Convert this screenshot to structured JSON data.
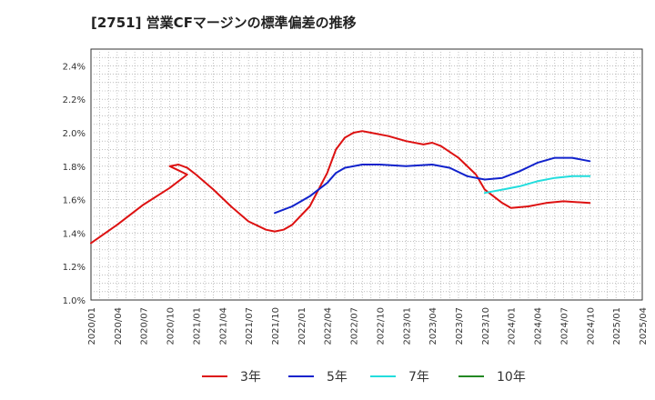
{
  "chart_data": {
    "type": "line",
    "title": "[2751]  営業CFマージンの標準偏差の推移",
    "xlabel": "",
    "ylabel": "",
    "ylim": [
      1.0,
      2.5
    ],
    "xlim": [
      "2020/01",
      "2025/04"
    ],
    "y_ticks": [
      "1.0%",
      "1.2%",
      "1.4%",
      "1.6%",
      "1.8%",
      "2.0%",
      "2.2%",
      "2.4%"
    ],
    "x_ticks": [
      "2020/01",
      "2020/04",
      "2020/07",
      "2020/10",
      "2021/01",
      "2021/04",
      "2021/07",
      "2021/10",
      "2022/01",
      "2022/04",
      "2022/07",
      "2022/10",
      "2023/01",
      "2023/04",
      "2023/07",
      "2023/10",
      "2024/01",
      "2024/04",
      "2024/07",
      "2024/10",
      "2025/01",
      "2025/04"
    ],
    "grid": true,
    "legend_position": "bottom",
    "series": [
      {
        "name": "3年",
        "color": "#dd1111",
        "points": [
          [
            "2020/01",
            1.34
          ],
          [
            "2020/04",
            1.45
          ],
          [
            "2020/07",
            1.57
          ],
          [
            "2020/10",
            1.67
          ],
          [
            "2020/12",
            1.75
          ],
          [
            "2020/10",
            1.8
          ],
          [
            "2020/11",
            1.81
          ],
          [
            "2020/12",
            1.79
          ],
          [
            "2021/01",
            1.75
          ],
          [
            "2021/03",
            1.66
          ],
          [
            "2021/05",
            1.56
          ],
          [
            "2021/07",
            1.47
          ],
          [
            "2021/09",
            1.42
          ],
          [
            "2021/10",
            1.41
          ],
          [
            "2021/11",
            1.42
          ],
          [
            "2021/12",
            1.45
          ],
          [
            "2022/02",
            1.56
          ],
          [
            "2022/04",
            1.76
          ],
          [
            "2022/05",
            1.9
          ],
          [
            "2022/06",
            1.97
          ],
          [
            "2022/07",
            2.0
          ],
          [
            "2022/08",
            2.01
          ],
          [
            "2022/09",
            2.0
          ],
          [
            "2022/11",
            1.98
          ],
          [
            "2023/01",
            1.95
          ],
          [
            "2023/03",
            1.93
          ],
          [
            "2023/04",
            1.94
          ],
          [
            "2023/05",
            1.92
          ],
          [
            "2023/07",
            1.85
          ],
          [
            "2023/09",
            1.75
          ],
          [
            "2023/10",
            1.66
          ],
          [
            "2023/12",
            1.58
          ],
          [
            "2024/01",
            1.55
          ],
          [
            "2024/03",
            1.56
          ],
          [
            "2024/05",
            1.58
          ],
          [
            "2024/07",
            1.59
          ],
          [
            "2024/10",
            1.58
          ]
        ]
      },
      {
        "name": "5年",
        "color": "#1122cc",
        "points": [
          [
            "2021/10",
            1.52
          ],
          [
            "2021/12",
            1.56
          ],
          [
            "2022/02",
            1.62
          ],
          [
            "2022/04",
            1.7
          ],
          [
            "2022/05",
            1.76
          ],
          [
            "2022/06",
            1.79
          ],
          [
            "2022/08",
            1.81
          ],
          [
            "2022/10",
            1.81
          ],
          [
            "2023/01",
            1.8
          ],
          [
            "2023/04",
            1.81
          ],
          [
            "2023/06",
            1.79
          ],
          [
            "2023/08",
            1.74
          ],
          [
            "2023/10",
            1.72
          ],
          [
            "2023/12",
            1.73
          ],
          [
            "2024/02",
            1.77
          ],
          [
            "2024/04",
            1.82
          ],
          [
            "2024/06",
            1.85
          ],
          [
            "2024/08",
            1.85
          ],
          [
            "2024/10",
            1.83
          ]
        ]
      },
      {
        "name": "7年",
        "color": "#22dddd",
        "points": [
          [
            "2023/10",
            1.64
          ],
          [
            "2023/12",
            1.66
          ],
          [
            "2024/02",
            1.68
          ],
          [
            "2024/04",
            1.71
          ],
          [
            "2024/06",
            1.73
          ],
          [
            "2024/08",
            1.74
          ],
          [
            "2024/10",
            1.74
          ]
        ]
      },
      {
        "name": "10年",
        "color": "#228822",
        "points": []
      }
    ]
  }
}
